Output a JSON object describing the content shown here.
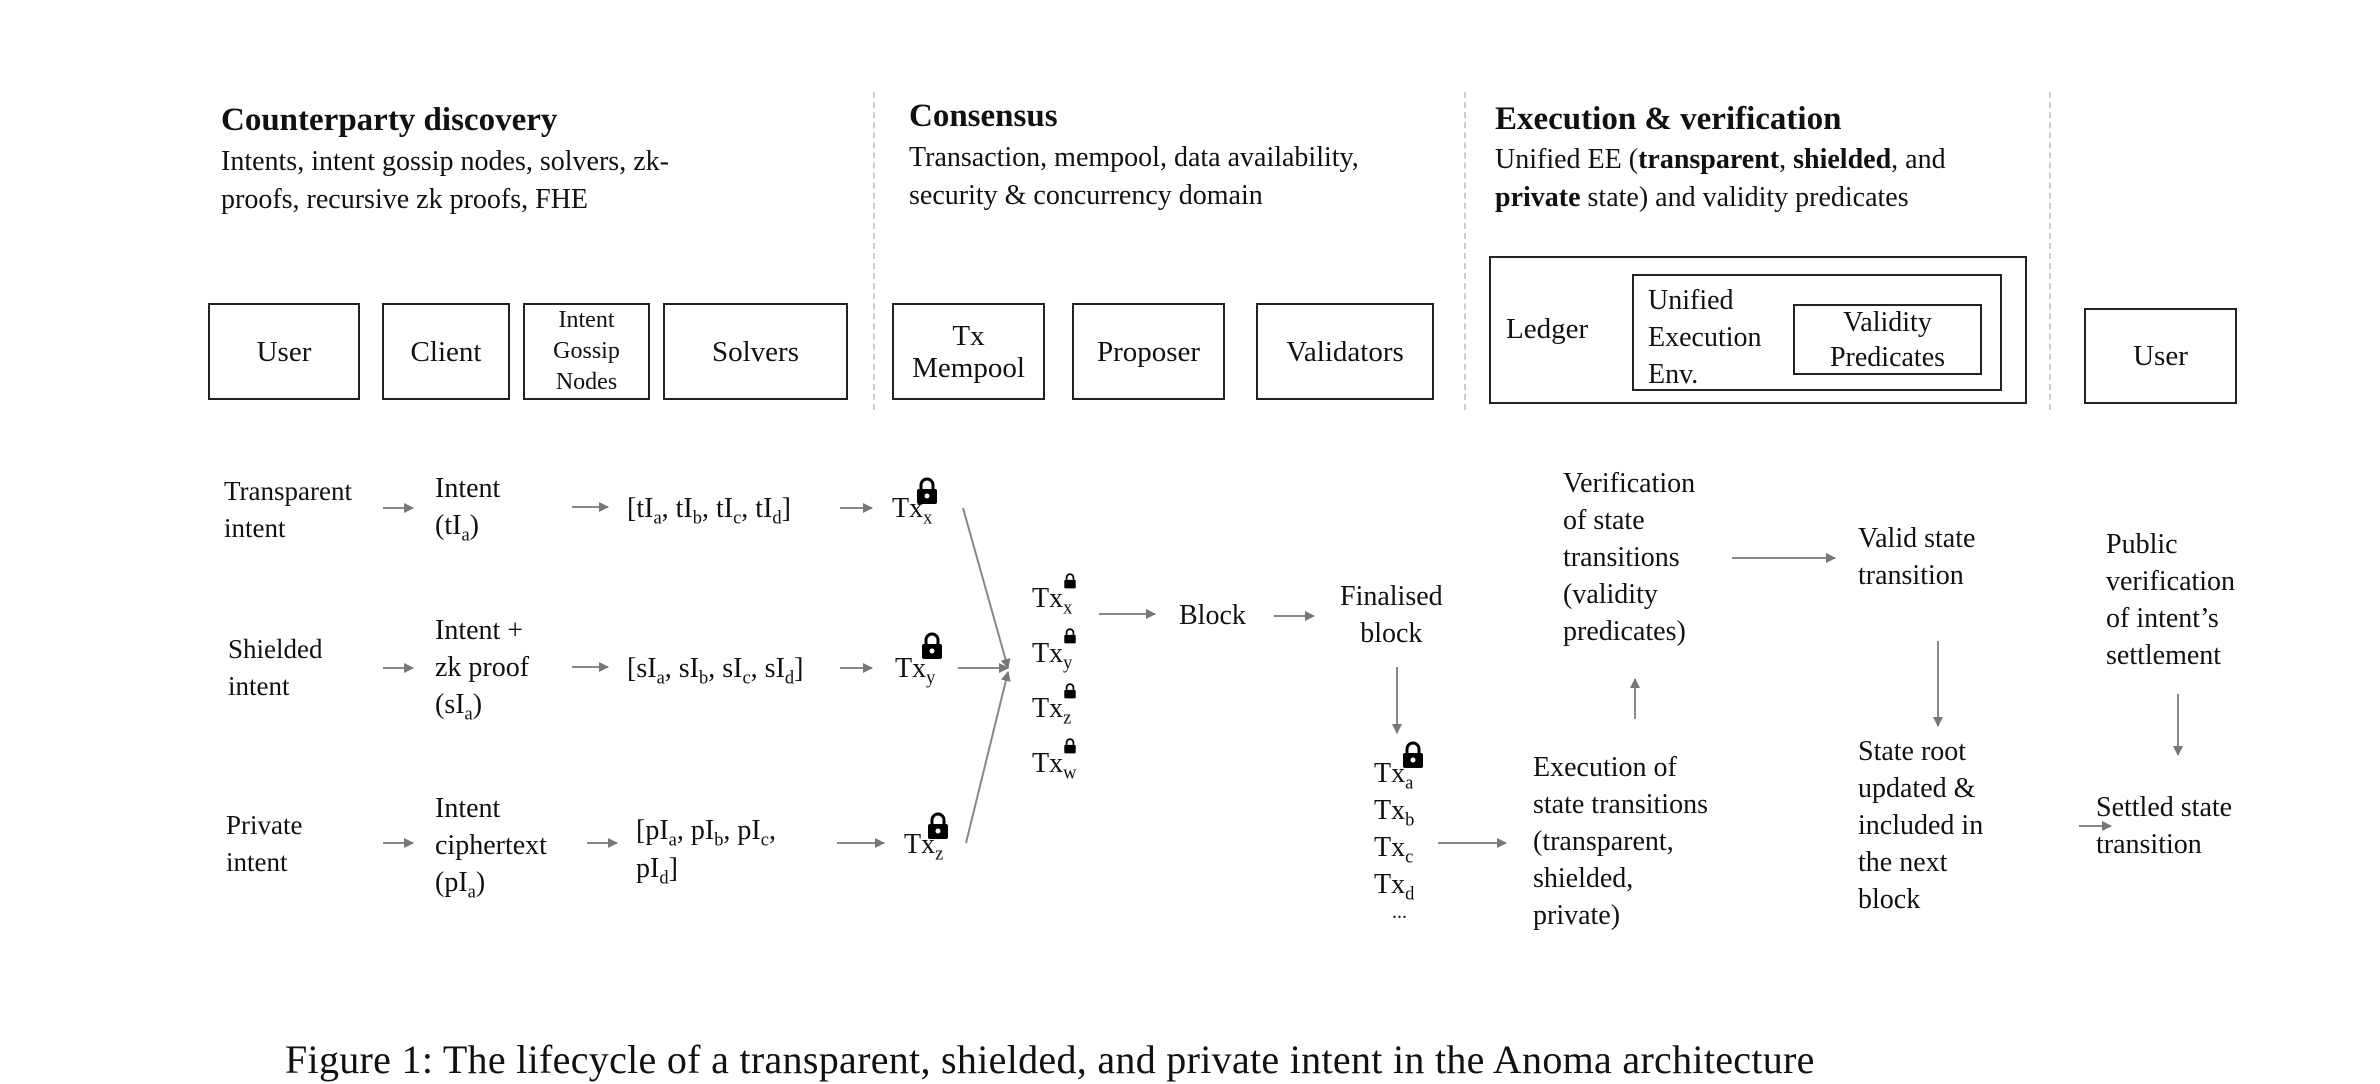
{
  "sections": {
    "discovery": {
      "title": "Counterparty discovery",
      "desc_line1": "Intents, intent gossip nodes, solvers, zk-",
      "desc_line2": "proofs, recursive zk proofs, FHE"
    },
    "consensus": {
      "title": "Consensus",
      "desc_line1": "Transaction, mempool, data availability,",
      "desc_line2": "security & concurrency domain"
    },
    "execution": {
      "title": "Execution & verification",
      "desc_a": "Unified EE (",
      "desc_transparent": "transparent",
      "desc_b": ", ",
      "desc_shielded": "shielded",
      "desc_c": ", and",
      "desc_private": "private",
      "desc_d": " state) and validity predicates"
    }
  },
  "components": {
    "user": "User",
    "client": "Client",
    "gossip_1": "Intent",
    "gossip_2": "Gossip",
    "gossip_3": "Nodes",
    "solvers": "Solvers",
    "mempool_1": "Tx",
    "mempool_2": "Mempool",
    "proposer": "Proposer",
    "validators": "Validators",
    "ledger": "Ledger",
    "uee_1": "Unified",
    "uee_2": "Execution",
    "uee_3": "Env.",
    "vp_1": "Validity",
    "vp_2": "Predicates",
    "user_end": "User"
  },
  "flows": {
    "transparent": {
      "label_1": "Transparent",
      "label_2": "intent",
      "intent_1": "Intent",
      "intent_2a": "(tI",
      "intent_2sub": "a",
      "intent_2b": ")",
      "set_prefix": "t"
    },
    "shielded": {
      "label_1": "Shielded",
      "label_2": "intent",
      "intent_1": "Intent +",
      "intent_2": "zk proof",
      "intent_3a": "(sI",
      "intent_3sub": "a",
      "intent_3b": ")",
      "set_prefix": "s"
    },
    "private": {
      "label_1": "Private",
      "label_2": "intent",
      "intent_1": "Intent",
      "intent_2": "ciphertext",
      "intent_3a": "(pI",
      "intent_3sub": "a",
      "intent_3b": ")",
      "set_prefix": "p"
    },
    "set_letter": "I",
    "subs": [
      "a",
      "b",
      "c",
      "d"
    ],
    "tx": "Tx",
    "tx_subs": [
      "x",
      "y",
      "z",
      "w"
    ],
    "tx_block_subs": [
      "a",
      "b",
      "c",
      "d"
    ],
    "block": "Block",
    "finalised_1": "Finalised",
    "finalised_2": "block",
    "ellipsis": "...",
    "verification": [
      "Verification",
      "of state",
      "transitions",
      "(validity",
      "predicates)"
    ],
    "execution": [
      "Execution of",
      "state transitions",
      "(transparent,",
      "shielded,",
      "private)"
    ],
    "valid": [
      "Valid state",
      "transition"
    ],
    "state_root": [
      "State root",
      "updated &",
      "included in",
      "the next",
      "block"
    ],
    "public": [
      "Public",
      "verification",
      "of intent’s",
      "settlement"
    ],
    "settled": [
      "Settled state",
      "transition"
    ]
  },
  "caption": "Figure 1: The lifecycle of a transparent, shielded, and private intent in the Anoma architecture"
}
